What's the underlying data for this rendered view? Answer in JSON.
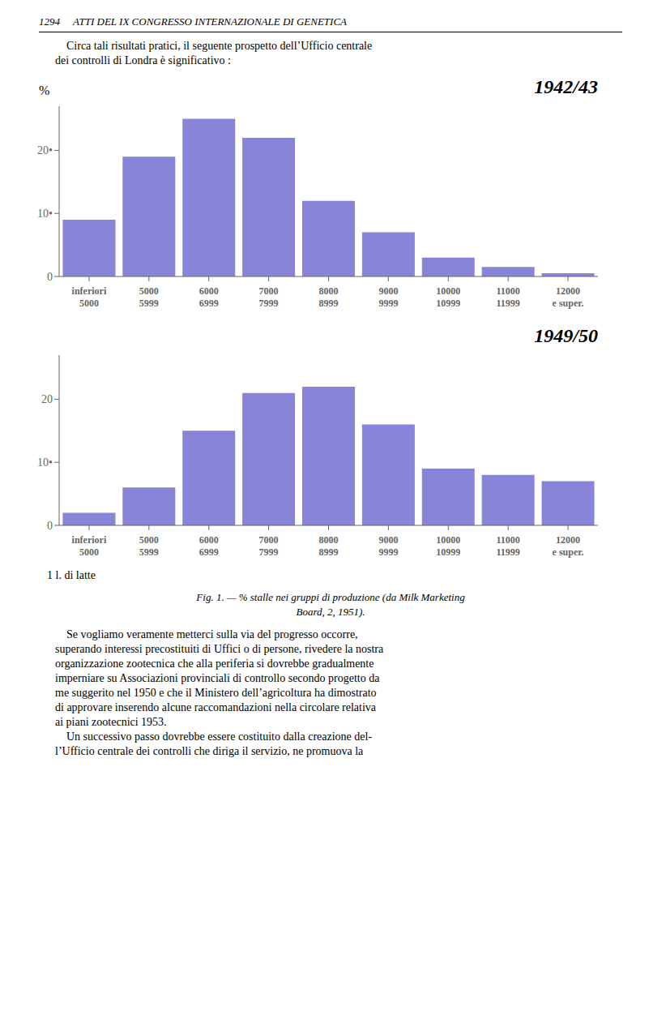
{
  "chart_data": [
    {
      "type": "bar",
      "title": "1942/43",
      "ylabel": "%",
      "categories": [
        "inferiori\n5000",
        "5000\n5999",
        "6000\n6999",
        "7000\n7999",
        "8000\n8999",
        "9000\n9999",
        "10000\n10999",
        "11000\n11999",
        "12000\ne super."
      ],
      "values": [
        9,
        19,
        25,
        22,
        12,
        7,
        3,
        1.5,
        0.5
      ],
      "color": "#8884d8",
      "ylim": [
        0,
        27
      ],
      "yticks": [
        0,
        {
          "value": 10,
          "label": "10•"
        },
        {
          "value": 20,
          "label": "20•"
        }
      ],
      "grid": false
    },
    {
      "type": "bar",
      "title": "1949/50",
      "xlabel": "1 l. di latte",
      "categories": [
        "inferiori\n5000",
        "5000\n5999",
        "6000\n6999",
        "7000\n7999",
        "8000\n8999",
        "9000\n9999",
        "10000\n10999",
        "11000\n11999",
        "12000\ne super."
      ],
      "values": [
        2,
        6,
        15,
        21,
        22,
        16,
        9,
        8,
        7
      ],
      "color": "#8884d8",
      "ylim": [
        0,
        27
      ],
      "yticks": [
        0,
        {
          "value": 10,
          "label": "10•"
        },
        20
      ],
      "grid": false
    }
  ],
  "annotations": {
    "header": "1294     ATTI DEL IX CONGRESSO INTERNAZIONALE DI GENETICA",
    "intro": [
      "    Circa tali risultati pratici, il seguente prospetto dell’Ufficio centrale",
      "dei controlli di Londra è significativo :"
    ],
    "caption": [
      "Fig. 1. — % stalle nei gruppi di produzione (da Milk Marketing",
      "Board, 2, 1951)."
    ],
    "body": [
      "    Se vogliamo veramente metterci sulla via del progresso occorre,",
      "superando interessi precostituiti di Uffici o di persone, rivedere la nostra",
      "organizzazione zootecnica che alla periferia si dovrebbe gradualmente",
      "imperniare su Associazioni provinciali di controllo secondo progetto da",
      "me suggerito nel 1950 e che il Ministero dell’agricoltura ha dimostrato",
      "di approvare inserendo alcune raccomandazioni nella circolare relativa",
      "ai piani zootecnici 1953.",
      "    Un successivo passo dovrebbe essere costituito dalla creazione del-",
      "l’Ufficio centrale dei controlli che diriga il servizio, ne promuova la"
    ]
  }
}
